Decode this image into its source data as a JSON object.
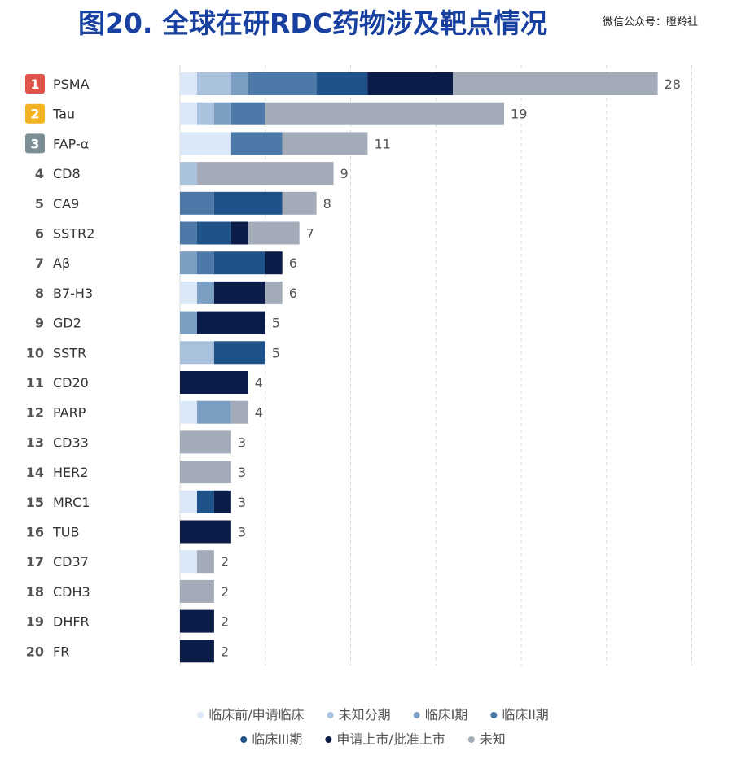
{
  "title": "图20. 全球在研RDC药物涉及靶点情况",
  "watermark": "微信公众号：瞪羚社",
  "colors": {
    "title": "#1740a0",
    "rank_1": "#e0534a",
    "rank_2": "#f3b224",
    "rank_3": "#7c8e96",
    "rank_plain": "#555555",
    "label": "#333333",
    "value": "#555555",
    "grid": "#d8d8d8"
  },
  "chart_data": {
    "type": "bar",
    "orientation": "horizontal",
    "stacked": true,
    "grid": "vertical-dashed",
    "legend_position": "bottom",
    "categories": [
      "PSMA",
      "Tau",
      "FAP-α",
      "CD8",
      "CA9",
      "SSTR2",
      "Aβ",
      "B7-H3",
      "GD2",
      "SSTR",
      "CD20",
      "PARP",
      "CD33",
      "HER2",
      "MRC1",
      "TUB",
      "CD37",
      "CDH3",
      "DHFR",
      "FR"
    ],
    "ranks": [
      "1",
      "2",
      "3",
      "4",
      "5",
      "6",
      "7",
      "8",
      "9",
      "10",
      "11",
      "12",
      "13",
      "14",
      "15",
      "16",
      "17",
      "18",
      "19",
      "20"
    ],
    "totals": [
      28,
      19,
      11,
      9,
      8,
      7,
      6,
      6,
      5,
      5,
      4,
      4,
      3,
      3,
      3,
      3,
      2,
      2,
      2,
      2
    ],
    "xlim": [
      0,
      30
    ],
    "series": [
      {
        "name": "临床前/申请临床",
        "color": "#dbe8f8",
        "values": [
          1,
          1,
          3,
          0,
          0,
          0,
          0,
          1,
          0,
          0,
          0,
          1,
          0,
          0,
          1,
          0,
          1,
          0,
          0,
          0
        ]
      },
      {
        "name": "未知分期",
        "color": "#a9c3df",
        "values": [
          2,
          1,
          0,
          1,
          0,
          0,
          0,
          0,
          0,
          2,
          0,
          0,
          0,
          0,
          0,
          0,
          0,
          0,
          0,
          0
        ]
      },
      {
        "name": "临床I期",
        "color": "#7a9fc3",
        "values": [
          1,
          1,
          0,
          0,
          0,
          0,
          1,
          1,
          1,
          0,
          0,
          2,
          0,
          0,
          0,
          0,
          0,
          0,
          0,
          0
        ]
      },
      {
        "name": "临床II期",
        "color": "#4d79a8",
        "values": [
          4,
          2,
          3,
          0,
          2,
          1,
          1,
          0,
          0,
          0,
          0,
          0,
          0,
          0,
          0,
          0,
          0,
          0,
          0,
          0
        ]
      },
      {
        "name": "临床III期",
        "color": "#1f5289",
        "values": [
          3,
          0,
          0,
          0,
          4,
          2,
          3,
          0,
          0,
          3,
          0,
          0,
          0,
          0,
          1,
          0,
          0,
          0,
          0,
          0
        ]
      },
      {
        "name": "申请上市/批准上市",
        "color": "#0c1c48",
        "values": [
          5,
          0,
          0,
          0,
          0,
          1,
          1,
          3,
          4,
          0,
          4,
          0,
          0,
          0,
          1,
          3,
          0,
          0,
          2,
          2
        ]
      },
      {
        "name": "未知",
        "color": "#a3abb8",
        "values": [
          12,
          14,
          5,
          8,
          2,
          3,
          0,
          1,
          0,
          0,
          0,
          1,
          3,
          3,
          0,
          0,
          1,
          2,
          0,
          0
        ]
      }
    ]
  }
}
